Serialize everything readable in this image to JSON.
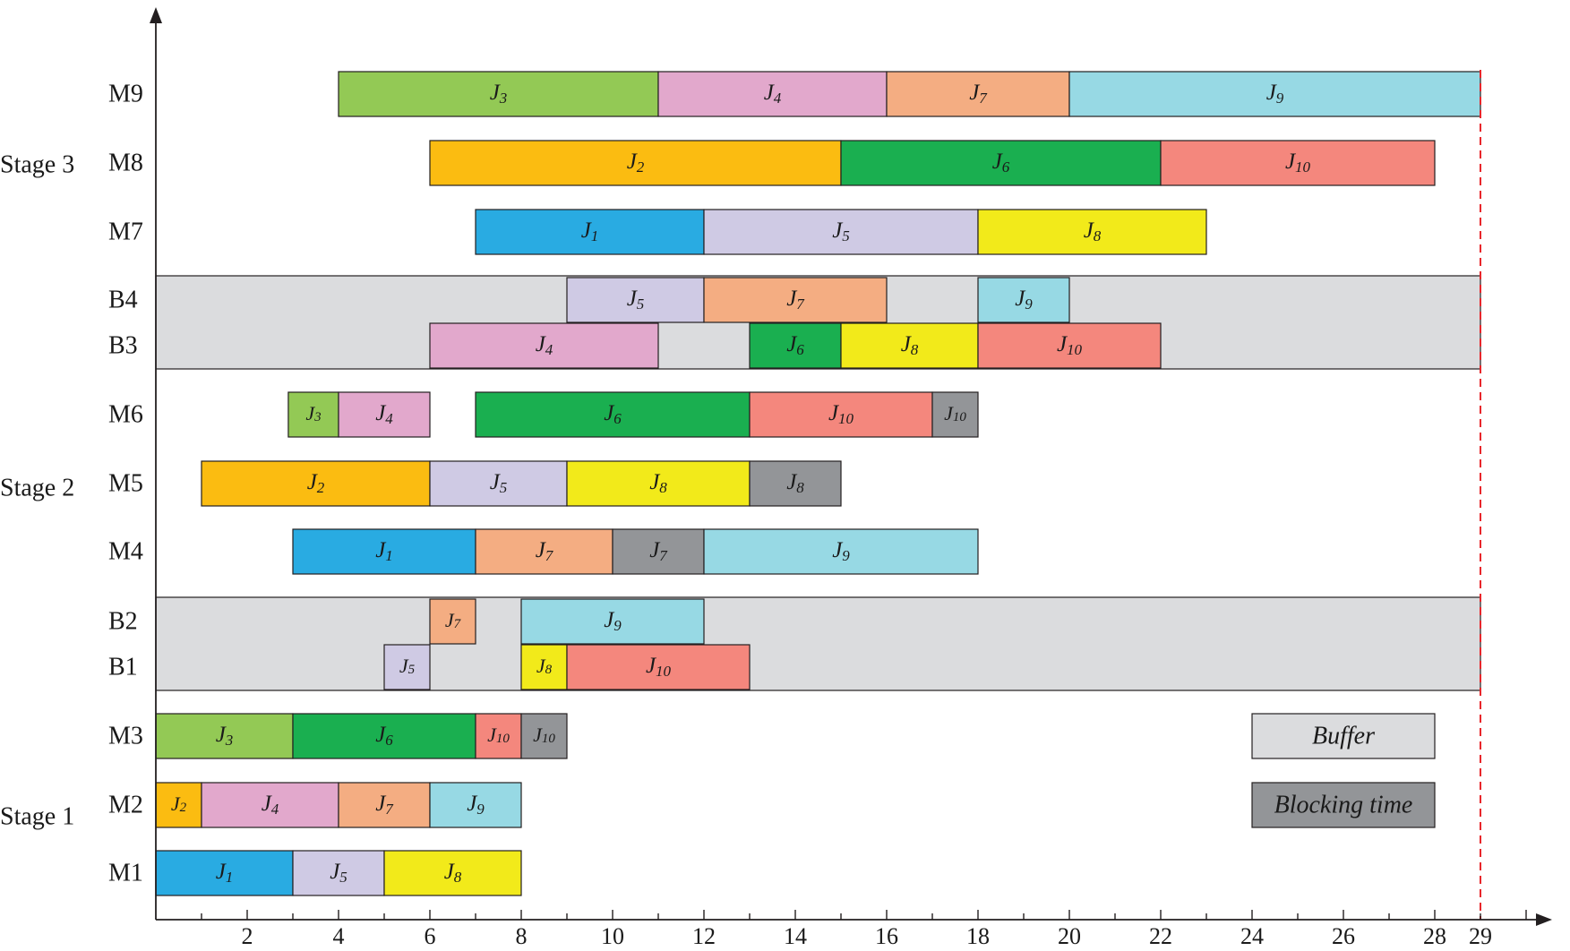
{
  "chart_data": {
    "type": "gantt",
    "title": "",
    "xlabel": "",
    "ylabel": "",
    "xlim": [
      0,
      29
    ],
    "x_ticks": [
      2,
      4,
      6,
      8,
      10,
      12,
      14,
      16,
      18,
      20,
      22,
      24,
      26,
      28,
      29
    ],
    "makespan": 29,
    "stages": [
      {
        "name": "Stage 3",
        "rows": [
          "M9",
          "M8",
          "M7"
        ]
      },
      {
        "name": "Stage 2",
        "rows": [
          "M6",
          "M5",
          "M4"
        ]
      },
      {
        "name": "Stage 1",
        "rows": [
          "M3",
          "M2",
          "M1"
        ]
      }
    ],
    "rows": [
      "M9",
      "M8",
      "M7",
      "B4",
      "B3",
      "M6",
      "M5",
      "M4",
      "B2",
      "B1",
      "M3",
      "M2",
      "M1"
    ],
    "buffer_regions": [
      {
        "rows": [
          "B4",
          "B3"
        ],
        "start": 0,
        "end": 29
      },
      {
        "rows": [
          "B2",
          "B1"
        ],
        "start": 0,
        "end": 29
      }
    ],
    "job_colors": {
      "1": "#29abe2",
      "2": "#fbbc11",
      "3": "#93c955",
      "4": "#e2a8cc",
      "5": "#cfcae4",
      "6": "#1aaf50",
      "7": "#f4ad82",
      "8": "#f2ea1a",
      "9": "#97d9e4",
      "10": "#f4877d"
    },
    "blocking_color": "#939598",
    "buffer_color": "#dbdcde",
    "tasks": [
      {
        "row": "M9",
        "job": "J",
        "sub": "3",
        "start": 4,
        "end": 11,
        "kind": "process"
      },
      {
        "row": "M9",
        "job": "J",
        "sub": "4",
        "start": 11,
        "end": 16,
        "kind": "process"
      },
      {
        "row": "M9",
        "job": "J",
        "sub": "7",
        "start": 16,
        "end": 20,
        "kind": "process"
      },
      {
        "row": "M9",
        "job": "J",
        "sub": "9",
        "start": 20,
        "end": 29,
        "kind": "process"
      },
      {
        "row": "M8",
        "job": "J",
        "sub": "2",
        "start": 6,
        "end": 15,
        "kind": "process"
      },
      {
        "row": "M8",
        "job": "J",
        "sub": "6",
        "start": 15,
        "end": 22,
        "kind": "process"
      },
      {
        "row": "M8",
        "job": "J",
        "sub": "10",
        "start": 22,
        "end": 28,
        "kind": "process"
      },
      {
        "row": "M7",
        "job": "J",
        "sub": "1",
        "start": 7,
        "end": 12,
        "kind": "process"
      },
      {
        "row": "M7",
        "job": "J",
        "sub": "5",
        "start": 12,
        "end": 18,
        "kind": "process"
      },
      {
        "row": "M7",
        "job": "J",
        "sub": "8",
        "start": 18,
        "end": 23,
        "kind": "process"
      },
      {
        "row": "B4",
        "job": "J",
        "sub": "5",
        "start": 9,
        "end": 12,
        "kind": "process"
      },
      {
        "row": "B4",
        "job": "J",
        "sub": "7",
        "start": 12,
        "end": 16,
        "kind": "process"
      },
      {
        "row": "B4",
        "job": "J",
        "sub": "9",
        "start": 18,
        "end": 20,
        "kind": "process"
      },
      {
        "row": "B3",
        "job": "J",
        "sub": "4",
        "start": 6,
        "end": 11,
        "kind": "process"
      },
      {
        "row": "B3",
        "job": "J",
        "sub": "6",
        "start": 13,
        "end": 15,
        "kind": "process"
      },
      {
        "row": "B3",
        "job": "J",
        "sub": "8",
        "start": 15,
        "end": 18,
        "kind": "process"
      },
      {
        "row": "B3",
        "job": "J",
        "sub": "10",
        "start": 18,
        "end": 22,
        "kind": "process"
      },
      {
        "row": "M6",
        "job": "J",
        "sub": "3",
        "start": 2.9,
        "end": 4,
        "kind": "process"
      },
      {
        "row": "M6",
        "job": "J",
        "sub": "4",
        "start": 4,
        "end": 6,
        "kind": "process"
      },
      {
        "row": "M6",
        "job": "J",
        "sub": "6",
        "start": 7,
        "end": 13,
        "kind": "process"
      },
      {
        "row": "M6",
        "job": "J",
        "sub": "10",
        "start": 13,
        "end": 17,
        "kind": "process"
      },
      {
        "row": "M6",
        "job": "J",
        "sub": "10",
        "start": 17,
        "end": 18,
        "kind": "blocking"
      },
      {
        "row": "M5",
        "job": "J",
        "sub": "2",
        "start": 1,
        "end": 6,
        "kind": "process"
      },
      {
        "row": "M5",
        "job": "J",
        "sub": "5",
        "start": 6,
        "end": 9,
        "kind": "process"
      },
      {
        "row": "M5",
        "job": "J",
        "sub": "8",
        "start": 9,
        "end": 13,
        "kind": "process"
      },
      {
        "row": "M5",
        "job": "J",
        "sub": "8",
        "start": 13,
        "end": 15,
        "kind": "blocking"
      },
      {
        "row": "M4",
        "job": "J",
        "sub": "1",
        "start": 3,
        "end": 7,
        "kind": "process"
      },
      {
        "row": "M4",
        "job": "J",
        "sub": "7",
        "start": 7,
        "end": 10,
        "kind": "process"
      },
      {
        "row": "M4",
        "job": "J",
        "sub": "7",
        "start": 10,
        "end": 12,
        "kind": "blocking"
      },
      {
        "row": "M4",
        "job": "J",
        "sub": "9",
        "start": 12,
        "end": 18,
        "kind": "process"
      },
      {
        "row": "B2",
        "job": "J",
        "sub": "7",
        "start": 6,
        "end": 7,
        "kind": "process"
      },
      {
        "row": "B2",
        "job": "J",
        "sub": "9",
        "start": 8,
        "end": 12,
        "kind": "process"
      },
      {
        "row": "B1",
        "job": "J",
        "sub": "5",
        "start": 5,
        "end": 6,
        "kind": "process"
      },
      {
        "row": "B1",
        "job": "J",
        "sub": "8",
        "start": 8,
        "end": 9,
        "kind": "process"
      },
      {
        "row": "B1",
        "job": "J",
        "sub": "10",
        "start": 9,
        "end": 13,
        "kind": "process"
      },
      {
        "row": "M3",
        "job": "J",
        "sub": "3",
        "start": 0,
        "end": 3,
        "kind": "process"
      },
      {
        "row": "M3",
        "job": "J",
        "sub": "6",
        "start": 3,
        "end": 7,
        "kind": "process"
      },
      {
        "row": "M3",
        "job": "J",
        "sub": "10",
        "start": 7,
        "end": 8,
        "kind": "process"
      },
      {
        "row": "M3",
        "job": "J",
        "sub": "10",
        "start": 8,
        "end": 9,
        "kind": "blocking"
      },
      {
        "row": "M2",
        "job": "J",
        "sub": "2",
        "start": 0,
        "end": 1,
        "kind": "process"
      },
      {
        "row": "M2",
        "job": "J",
        "sub": "4",
        "start": 1,
        "end": 4,
        "kind": "process"
      },
      {
        "row": "M2",
        "job": "J",
        "sub": "7",
        "start": 4,
        "end": 6,
        "kind": "process"
      },
      {
        "row": "M2",
        "job": "J",
        "sub": "9",
        "start": 6,
        "end": 8,
        "kind": "process"
      },
      {
        "row": "M1",
        "job": "J",
        "sub": "1",
        "start": 0,
        "end": 3,
        "kind": "process"
      },
      {
        "row": "M1",
        "job": "J",
        "sub": "5",
        "start": 3,
        "end": 5,
        "kind": "process"
      },
      {
        "row": "M1",
        "job": "J",
        "sub": "8",
        "start": 5,
        "end": 8,
        "kind": "process"
      }
    ],
    "legend": {
      "position": "bottom-right",
      "items": [
        {
          "label": "Buffer",
          "kind": "buffer"
        },
        {
          "label": "Blocking time",
          "kind": "blocking"
        }
      ]
    }
  }
}
